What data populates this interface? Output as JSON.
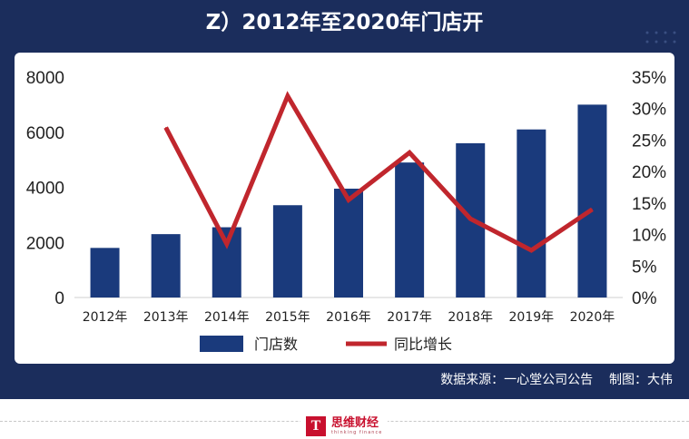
{
  "header": {
    "title": "Z）2012年至2020年门店开"
  },
  "footer": {
    "source": "数据来源：一心堂公司公告    制图：大伟"
  },
  "brand": {
    "logo_letter": "T",
    "name": "思维财经",
    "tagline": "thinking finance"
  },
  "colors": {
    "frame": "#1b2d5c",
    "bar": "#1a3a7c",
    "line": "#c0262d",
    "brand": "#c8102e"
  },
  "chart_data": {
    "type": "bar",
    "categories": [
      "2012年",
      "2013年",
      "2014年",
      "2015年",
      "2016年",
      "2017年",
      "2018年",
      "2019年",
      "2020年"
    ],
    "series": [
      {
        "name": "门店数",
        "type": "bar",
        "axis": "left",
        "values": [
          1800,
          2300,
          2550,
          3350,
          3950,
          4900,
          5600,
          6100,
          7000
        ]
      },
      {
        "name": "同比增长",
        "type": "line",
        "axis": "right",
        "values": [
          null,
          27,
          8.5,
          32,
          15.5,
          23,
          12.5,
          7.5,
          14
        ]
      }
    ],
    "y_left": {
      "ticks": [
        "0",
        "2000",
        "4000",
        "6000",
        "8000"
      ],
      "lim": [
        0,
        8000
      ]
    },
    "y_right": {
      "ticks": [
        "0%",
        "5%",
        "10%",
        "15%",
        "20%",
        "25%",
        "30%",
        "35%"
      ],
      "lim": [
        0,
        35
      ]
    },
    "legend_position": "bottom-center",
    "grid": false
  }
}
